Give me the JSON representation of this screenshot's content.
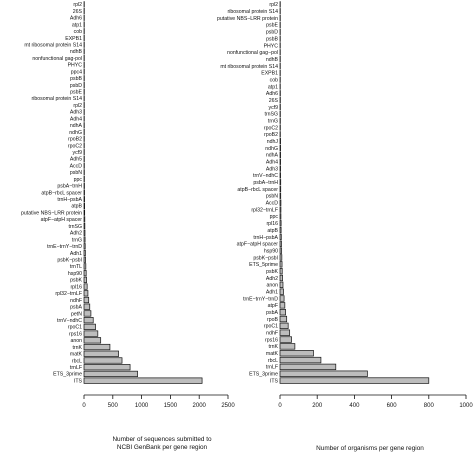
{
  "chart_data": [
    {
      "type": "bar",
      "orientation": "horizontal",
      "xlabel": "Number of sequences submitted to NCBI GenBank per gene region",
      "xlabel_lines": [
        "Number of sequences submitted to",
        "NCBI GenBank per gene region"
      ],
      "xlim": [
        0,
        2500
      ],
      "xticks": [
        0,
        500,
        1000,
        1500,
        2000,
        2500
      ],
      "categories": [
        "rpl2",
        "26S",
        "Adh6",
        "atp1",
        "cob",
        "EXPB1",
        "mt ribosomal protein S14",
        "ndhB",
        "nonfunctional gag-pol",
        "PHYC",
        "ppc4",
        "psbB",
        "psbD",
        "psbE",
        "ribosomal protein S14",
        "rpl2",
        "Adh3",
        "Adh4",
        "ndhA",
        "ndhG",
        "rpoB2",
        "rpoC2",
        "ycf9",
        "Adh5",
        "AccD",
        "psbN",
        "ppc",
        "psbA−trnH",
        "atpB−rbcL spacer",
        "trnH−psbA",
        "atpB",
        "putative NBS−LRR protein",
        "atpF−atpH spacer",
        "trnSG",
        "Adh2",
        "trnG",
        "trnE−trnY−trnD",
        "Adh1",
        "psbK−psbI",
        "trnTL",
        "hsp90",
        "psbK",
        "rpl16",
        "rpl32−trnLF",
        "ndhF",
        "psbA",
        "petN",
        "trnV−ndhC",
        "rpoC1",
        "rps16",
        "anon",
        "trnK",
        "matK",
        "rbcL",
        "trnLF",
        "ETS_3prime",
        "ITS"
      ],
      "values": [
        2,
        2,
        2,
        2,
        2,
        2,
        2,
        3,
        3,
        3,
        3,
        3,
        3,
        3,
        3,
        3,
        4,
        4,
        4,
        4,
        5,
        5,
        5,
        6,
        6,
        6,
        7,
        8,
        9,
        10,
        11,
        12,
        14,
        15,
        17,
        19,
        21,
        24,
        28,
        32,
        38,
        45,
        55,
        68,
        82,
        100,
        120,
        160,
        200,
        240,
        290,
        450,
        600,
        660,
        800,
        930,
        2050
      ]
    },
    {
      "type": "bar",
      "orientation": "horizontal",
      "xlabel": "Number of organisms per gene region",
      "xlabel_lines": [
        "Number of organisms per gene region"
      ],
      "xlim": [
        0,
        1000
      ],
      "xticks": [
        0,
        200,
        400,
        600,
        800,
        1000
      ],
      "categories": [
        "rpl2",
        "ribosomal protein S14",
        "putative NBS−LRR protein",
        "psbE",
        "psbD",
        "psbB",
        "PHYC",
        "nonfunctional gag−pol",
        "ndhB",
        "mt ribosomal protein S14",
        "EXPB1",
        "cob",
        "atp1",
        "Adh6",
        "26S",
        "ycf9",
        "trnSG",
        "trnG",
        "rpoC2",
        "rpoB2",
        "ndhJ",
        "ndhG",
        "ndhA",
        "Adh4",
        "Adh3",
        "trnV−ndhC",
        "psbA−trnH",
        "atpB−rbcL spacer",
        "psbN",
        "AccD",
        "rpl32−trnLF",
        "ppc",
        "rpl16",
        "atpB",
        "trnH−psbA",
        "atpF−atpH spacer",
        "hsp90",
        "psbK−psbI",
        "ETS_5prime",
        "psbK",
        "Adh2",
        "anon",
        "Adh1",
        "trnE−trnY−trnD",
        "atpF",
        "psbA",
        "rpoB",
        "rpoC1",
        "ndhF",
        "rps16",
        "trnK",
        "matK",
        "rbcL",
        "trnLF",
        "ETS_3prime",
        "ITS"
      ],
      "values": [
        1,
        1,
        1,
        1,
        1,
        1,
        1,
        1,
        1,
        1,
        1,
        1,
        1,
        2,
        2,
        2,
        2,
        2,
        2,
        2,
        3,
        3,
        3,
        3,
        3,
        3,
        4,
        4,
        4,
        5,
        5,
        5,
        6,
        6,
        7,
        8,
        9,
        10,
        11,
        12,
        14,
        16,
        19,
        22,
        26,
        30,
        36,
        44,
        52,
        62,
        80,
        180,
        220,
        300,
        470,
        800
      ]
    }
  ]
}
